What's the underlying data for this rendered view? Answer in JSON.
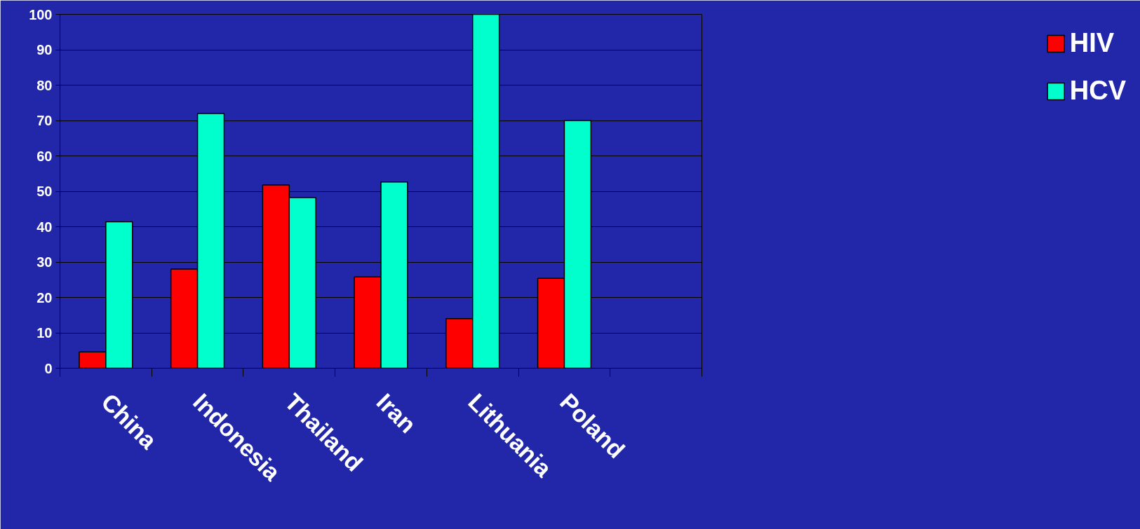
{
  "chart_data": {
    "type": "bar",
    "categories": [
      "China",
      "Indonesia",
      "Thailand",
      "Iran",
      "Lithuania",
      "Poland",
      null
    ],
    "series": [
      {
        "name": "HIV",
        "color": "#ff0000",
        "values": [
          4.6,
          28,
          51.8,
          25.8,
          14,
          25.4,
          null
        ]
      },
      {
        "name": "HCV",
        "color": "#00ffcc",
        "values": [
          41.4,
          72,
          48.2,
          52.6,
          100,
          70,
          null
        ]
      }
    ],
    "ylim": [
      0,
      100
    ],
    "yticks": [
      0,
      10,
      20,
      30,
      40,
      50,
      60,
      70,
      80,
      90,
      100
    ],
    "grid": "y",
    "legend": "right"
  }
}
